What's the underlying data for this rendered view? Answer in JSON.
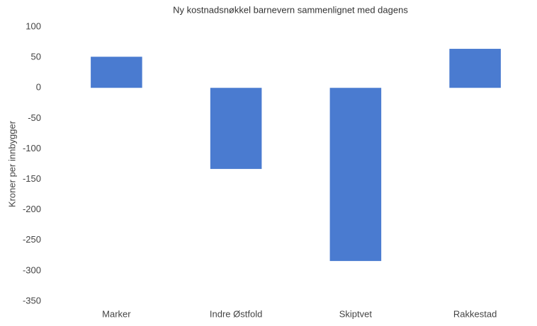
{
  "chart_data": {
    "type": "bar",
    "title": "Ny kostnadsnøkkel barnevern sammenlignet med dagens",
    "y_label": "Kroner per innbygger",
    "categories": [
      "Marker",
      "Indre Østfold",
      "Skiptvet",
      "Rakkestad"
    ],
    "values": [
      51,
      -133,
      -284,
      64
    ],
    "color": "#4a7bd0",
    "ylim": [
      -350,
      100
    ],
    "yticks": [
      -350,
      -300,
      -250,
      -200,
      -150,
      -100,
      -50,
      0,
      50,
      100
    ],
    "grid": false
  }
}
